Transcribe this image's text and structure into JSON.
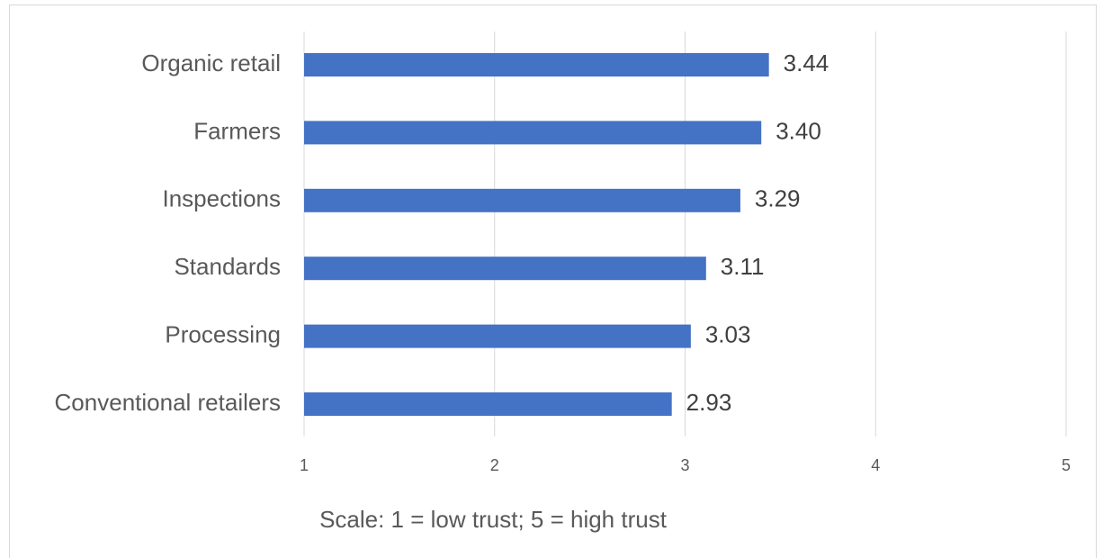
{
  "chart_data": {
    "type": "bar",
    "orientation": "horizontal",
    "categories": [
      "Organic retail",
      "Farmers",
      "Inspections",
      "Standards",
      "Processing",
      "Conventional retailers"
    ],
    "values": [
      3.44,
      3.4,
      3.29,
      3.11,
      3.03,
      2.93
    ],
    "value_labels": [
      "3.44",
      "3.40",
      "3.29",
      "3.11",
      "3.03",
      "2.93"
    ],
    "color": "#4472c4",
    "xlim": [
      1,
      5
    ],
    "xticks": [
      1,
      2,
      3,
      4,
      5
    ],
    "grid": true,
    "x_label": "Scale: 1 = low trust; 5 = high trust"
  }
}
